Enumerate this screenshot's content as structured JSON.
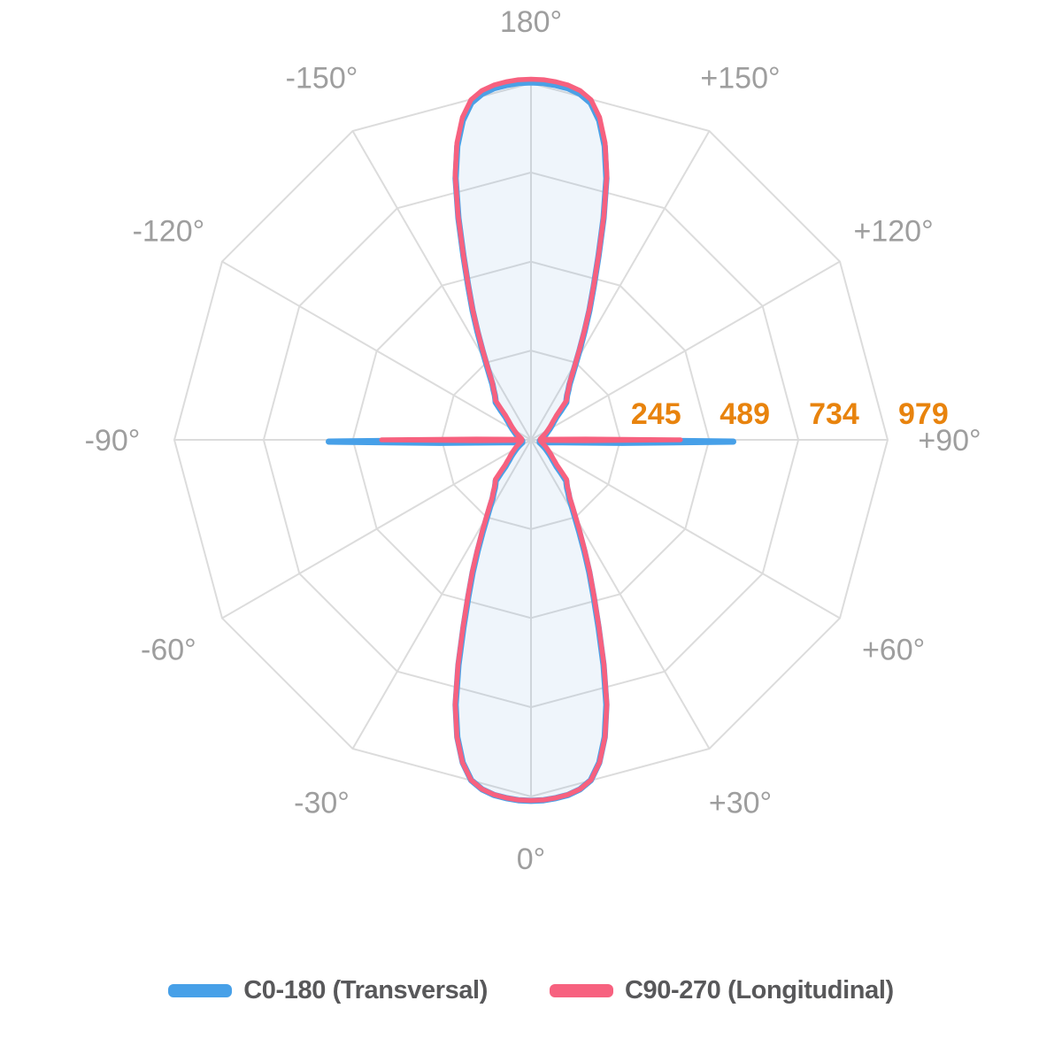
{
  "chart_data": {
    "type": "line",
    "subtype": "polar-photometric",
    "title": "",
    "angle_unit": "deg",
    "angle_convention": "0° at bottom, 180° at top, negative angles left / positive angles right; radius = luminous intensity",
    "grid": {
      "style": "polygonal rings with vertices every 30 degrees, 12 spokes",
      "ring_values": [
        245,
        489,
        734,
        979
      ],
      "max_ring_value": 979,
      "color": "#DCDCDC"
    },
    "angle_tick_labels": [
      {
        "angle": 180,
        "label": "180°"
      },
      {
        "angle": -150,
        "label": "-150°"
      },
      {
        "angle": 150,
        "label": "+150°"
      },
      {
        "angle": -120,
        "label": "-120°"
      },
      {
        "angle": 120,
        "label": "+120°"
      },
      {
        "angle": -90,
        "label": "-90°"
      },
      {
        "angle": 90,
        "label": "+90°"
      },
      {
        "angle": -60,
        "label": "-60°"
      },
      {
        "angle": 60,
        "label": "+60°"
      },
      {
        "angle": -30,
        "label": "-30°"
      },
      {
        "angle": 30,
        "label": "+30°"
      },
      {
        "angle": 0,
        "label": "0°"
      }
    ],
    "ring_label_color": "#E8830D",
    "angle_label_color": "#9E9E9E",
    "symmetry": "values given for gamma 0..90 apply mirrored to 90..180 and to the negative side",
    "gamma": [
      0,
      2,
      4,
      6,
      8,
      10,
      12,
      14,
      16,
      18,
      20,
      22,
      24,
      26,
      28,
      30,
      32,
      34,
      36,
      38,
      40,
      42,
      44,
      46,
      48,
      50,
      53,
      56,
      60,
      64,
      68,
      72,
      76,
      80,
      83,
      86,
      88,
      89.2,
      90
    ],
    "series": [
      {
        "name": "C0-180 (Transversal)",
        "color": "#47A0E8",
        "stroke_width": 7,
        "offset_y": 2,
        "fill": "none",
        "values": [
          986,
          985,
          981,
          975,
          964,
          944,
          901,
          836,
          751,
          645,
          542,
          460,
          394,
          334,
          284,
          244,
          213,
          189,
          175,
          161,
          152,
          145,
          117,
          97,
          87,
          78,
          69,
          61,
          52,
          45,
          39,
          34,
          30,
          27,
          25,
          24,
          40,
          250,
          555
        ]
      },
      {
        "name": "C90-270 (Longitudinal)",
        "color": "#F7617F",
        "stroke_width": 5.5,
        "offset_y": 0,
        "fill": "rgba(110,160,215,0.11)",
        "values": [
          990,
          989,
          985,
          979,
          968,
          948,
          905,
          840,
          755,
          648,
          545,
          462,
          396,
          336,
          286,
          246,
          215,
          190,
          176,
          162,
          153,
          146,
          118,
          98,
          88,
          79,
          70,
          62,
          53,
          46,
          40,
          35,
          31,
          28,
          26,
          25,
          45,
          150,
          410
        ]
      }
    ]
  },
  "legend": {
    "items": [
      {
        "label": "C0-180 (Transversal)",
        "color": "#47A0E8"
      },
      {
        "label": "C90-270 (Longitudinal)",
        "color": "#F7617F"
      }
    ]
  }
}
